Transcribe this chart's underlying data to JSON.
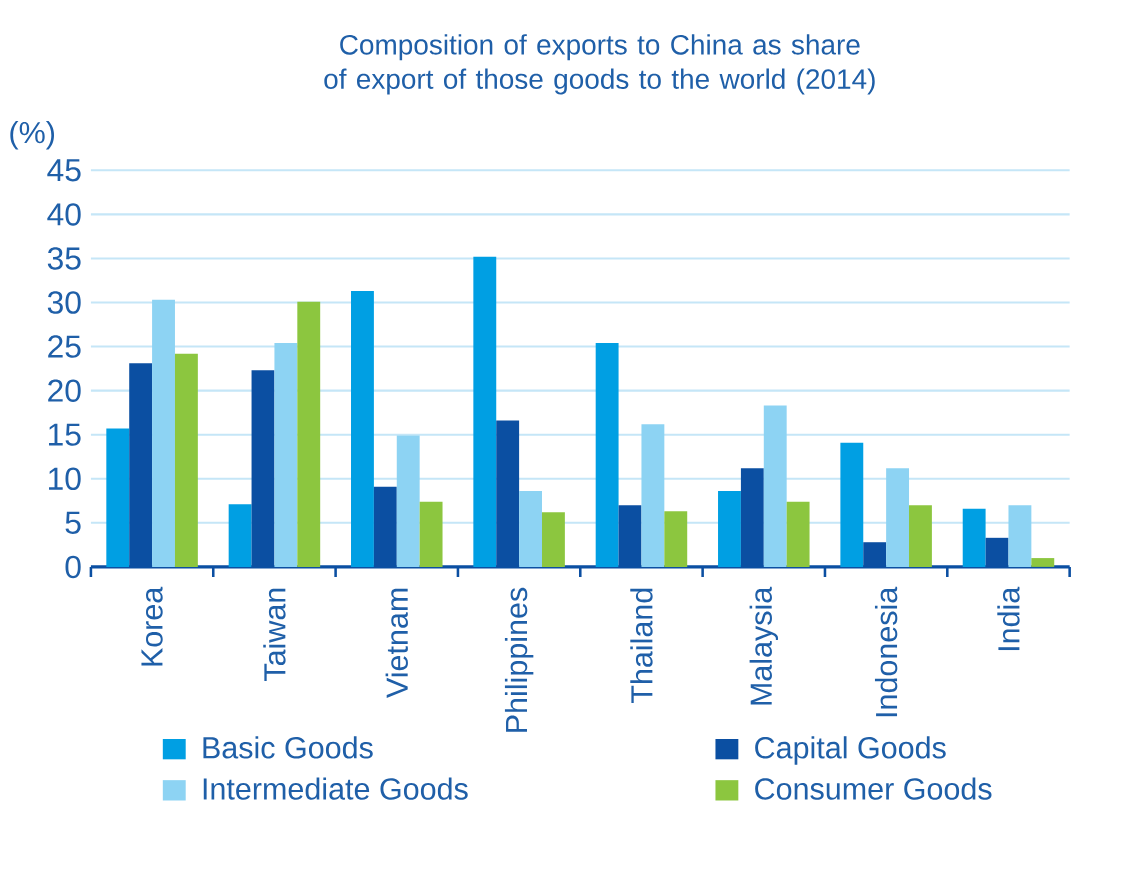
{
  "chart_data": {
    "type": "bar",
    "title": "Composition of exports to China as share of export of  those goods to the world (2014)",
    "ylabel": "(%)",
    "categories": [
      "Korea",
      "Taiwan",
      "Vietnam",
      "Philippines",
      "Thailand",
      "Malaysia",
      "Indonesia",
      "India"
    ],
    "series": [
      {
        "name": "Basic Goods",
        "color": "#009fe3",
        "values": [
          15.7,
          7.1,
          31.3,
          35.2,
          25.4,
          8.6,
          14.1,
          6.6
        ]
      },
      {
        "name": "Capital Goods",
        "color": "#0b4fa2",
        "values": [
          23.1,
          22.3,
          9.1,
          16.6,
          7.0,
          11.2,
          2.8,
          3.3
        ]
      },
      {
        "name": "Intermediate Goods",
        "color": "#8dd3f3",
        "values": [
          30.3,
          25.4,
          14.9,
          8.6,
          16.2,
          18.3,
          11.2,
          7.0
        ]
      },
      {
        "name": "Consumer Goods",
        "color": "#8cc63f",
        "values": [
          24.2,
          30.1,
          7.4,
          6.2,
          6.3,
          7.4,
          7.0,
          1.0
        ]
      }
    ],
    "ylim": [
      0,
      45
    ],
    "yticks": [
      0,
      5,
      10,
      15,
      20,
      25,
      30,
      35,
      40,
      45
    ],
    "grid": "y",
    "legend": "bottom"
  }
}
